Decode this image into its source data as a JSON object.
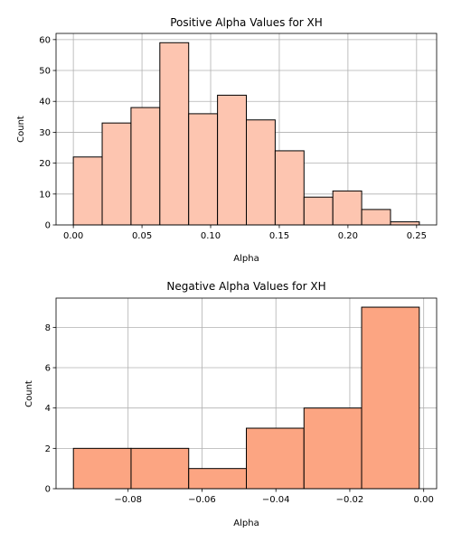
{
  "chart_data": [
    {
      "type": "bar",
      "title": "Positive Alpha Values for XH",
      "xlabel": "Alpha",
      "ylabel": "Count",
      "bin_edges": [
        0.0,
        0.021,
        0.042,
        0.063,
        0.084,
        0.105,
        0.126,
        0.147,
        0.168,
        0.189,
        0.21,
        0.231,
        0.252
      ],
      "values": [
        22,
        33,
        38,
        59,
        36,
        42,
        34,
        24,
        9,
        11,
        5,
        1
      ],
      "xlim": [
        -0.0126,
        0.2646
      ],
      "ylim": [
        0,
        62
      ],
      "xticks": [
        0.0,
        0.05,
        0.1,
        0.15,
        0.2,
        0.25
      ],
      "xtick_labels": [
        "0.00",
        "0.05",
        "0.10",
        "0.15",
        "0.20",
        "0.25"
      ],
      "yticks": [
        0,
        10,
        20,
        30,
        40,
        50,
        60
      ],
      "ytick_labels": [
        "0",
        "10",
        "20",
        "30",
        "40",
        "50",
        "60"
      ],
      "bar_color": "#fdc5b0",
      "edge_color": "#000000",
      "grid": true
    },
    {
      "type": "bar",
      "title": "Negative Alpha Values for XH",
      "xlabel": "Alpha",
      "ylabel": "Count",
      "bin_edges": [
        -0.0948,
        -0.0792,
        -0.0636,
        -0.048,
        -0.0324,
        -0.0168,
        -0.0012
      ],
      "values": [
        2,
        2,
        1,
        3,
        4,
        9
      ],
      "xlim": [
        -0.0995,
        0.0035
      ],
      "ylim": [
        0,
        9.45
      ],
      "xticks": [
        -0.08,
        -0.06,
        -0.04,
        -0.02,
        0.0
      ],
      "xtick_labels": [
        "−0.08",
        "−0.06",
        "−0.04",
        "−0.02",
        "0.00"
      ],
      "yticks": [
        0,
        2,
        4,
        6,
        8
      ],
      "ytick_labels": [
        "0",
        "2",
        "4",
        "6",
        "8"
      ],
      "bar_color": "#fca582",
      "edge_color": "#000000",
      "grid": true
    }
  ]
}
